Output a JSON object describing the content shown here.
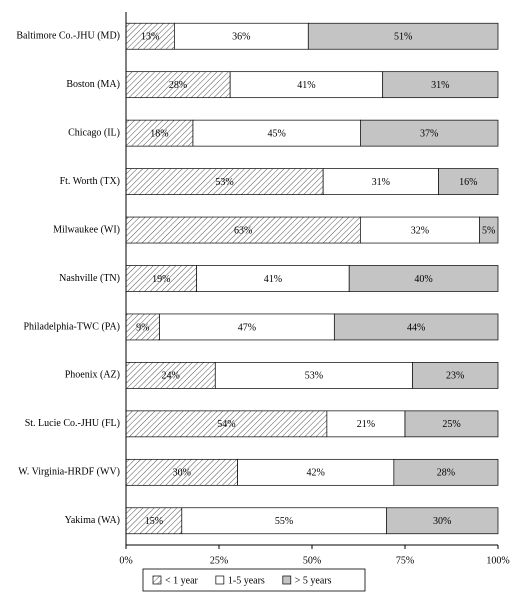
{
  "chart_data": {
    "type": "stacked-barh",
    "categories": [
      "Baltimore Co.-JHU (MD)",
      "Boston (MA)",
      "Chicago (IL)",
      "Ft. Worth (TX)",
      "Milwaukee (WI)",
      "Nashville (TN)",
      "Philadelphia-TWC (PA)",
      "Phoenix (AZ)",
      "St. Lucie Co.-JHU (FL)",
      "W. Virginia-HRDF (WV)",
      "Yakima (WA)"
    ],
    "series": [
      {
        "name": "< 1 year",
        "color": "#555555",
        "hatch": true,
        "values": [
          13,
          28,
          18,
          53,
          63,
          19,
          9,
          24,
          54,
          30,
          15
        ],
        "value_labels": [
          "13%",
          "28%",
          "18%",
          "53%",
          "63%",
          "19%",
          "9%",
          "24%",
          "54%",
          "30%",
          "15%"
        ]
      },
      {
        "name": "1-5 years",
        "color": "#ffffff",
        "hatch": false,
        "values": [
          36,
          41,
          45,
          31,
          32,
          41,
          47,
          53,
          21,
          42,
          55
        ],
        "value_labels": [
          "36%",
          "41%",
          "45%",
          "31%",
          "32%",
          "41%",
          "47%",
          "53%",
          "21%",
          "42%",
          "55%"
        ]
      },
      {
        "name": "> 5 years",
        "color": "#c4c4c4",
        "hatch": false,
        "values": [
          51,
          31,
          37,
          16,
          5,
          40,
          44,
          23,
          25,
          28,
          30
        ],
        "value_labels": [
          "51%",
          "31%",
          "37%",
          "16%",
          "5%",
          "40%",
          "44%",
          "23%",
          "25%",
          "28%",
          "30%"
        ]
      }
    ],
    "xlim": [
      0,
      100
    ],
    "xticks": [
      {
        "value": 0,
        "label": "0%"
      },
      {
        "value": 25,
        "label": "25%"
      },
      {
        "value": 50,
        "label": "50%"
      },
      {
        "value": 75,
        "label": "75%"
      },
      {
        "value": 100,
        "label": "100%"
      }
    ],
    "legend": "bottom"
  }
}
